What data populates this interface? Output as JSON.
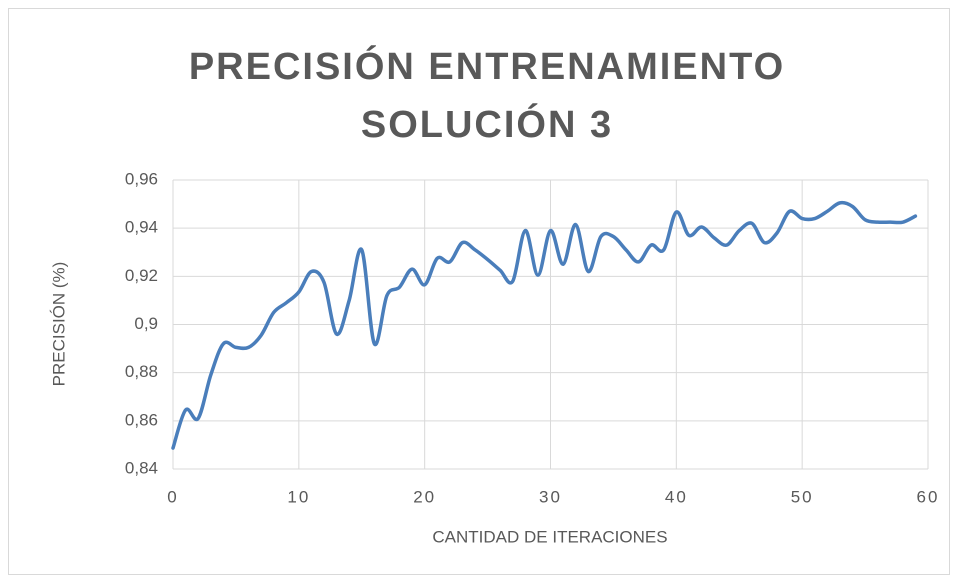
{
  "chart_data": {
    "type": "line",
    "title": "PRECISIÓN ENTRENAMIENTO SOLUCIÓN 3",
    "xlabel": "CANTIDAD DE ITERACIONES",
    "ylabel": "PRECISIÓN (%)",
    "x": [
      0,
      1,
      2,
      3,
      4,
      5,
      6,
      7,
      8,
      9,
      10,
      11,
      12,
      13,
      14,
      15,
      16,
      17,
      18,
      19,
      20,
      21,
      22,
      23,
      24,
      25,
      26,
      27,
      28,
      29,
      30,
      31,
      32,
      33,
      34,
      35,
      36,
      37,
      38,
      39,
      40,
      41,
      42,
      43,
      44,
      45,
      46,
      47,
      48,
      49,
      50,
      51,
      52,
      53,
      54,
      55,
      56,
      57,
      58,
      59
    ],
    "series": [
      {
        "name": "Precisión",
        "color": "#4a7ebb",
        "values": [
          0.8487,
          0.8645,
          0.861,
          0.879,
          0.892,
          0.8905,
          0.8905,
          0.8955,
          0.905,
          0.909,
          0.9135,
          0.922,
          0.9175,
          0.896,
          0.91,
          0.931,
          0.892,
          0.912,
          0.9155,
          0.923,
          0.9165,
          0.9275,
          0.926,
          0.934,
          0.931,
          0.927,
          0.9225,
          0.918,
          0.939,
          0.9205,
          0.939,
          0.925,
          0.9415,
          0.922,
          0.9365,
          0.9365,
          0.931,
          0.926,
          0.933,
          0.931,
          0.9467,
          0.937,
          0.9405,
          0.936,
          0.933,
          0.939,
          0.942,
          0.934,
          0.938,
          0.947,
          0.944,
          0.944,
          0.947,
          0.9505,
          0.949,
          0.9435,
          0.9425,
          0.9425,
          0.9425,
          0.945
        ]
      }
    ],
    "xlim": [
      0,
      60
    ],
    "xticks": [
      0,
      10,
      20,
      30,
      40,
      50,
      60
    ],
    "ylim": [
      0.84,
      0.96
    ],
    "yticks": [
      {
        "value": 0.84,
        "label": "0,84"
      },
      {
        "value": 0.86,
        "label": "0,86"
      },
      {
        "value": 0.88,
        "label": "0,88"
      },
      {
        "value": 0.9,
        "label": "0,9"
      },
      {
        "value": 0.92,
        "label": "0,92"
      },
      {
        "value": 0.94,
        "label": "0,94"
      },
      {
        "value": 0.96,
        "label": "0,96"
      }
    ],
    "grid": true
  }
}
